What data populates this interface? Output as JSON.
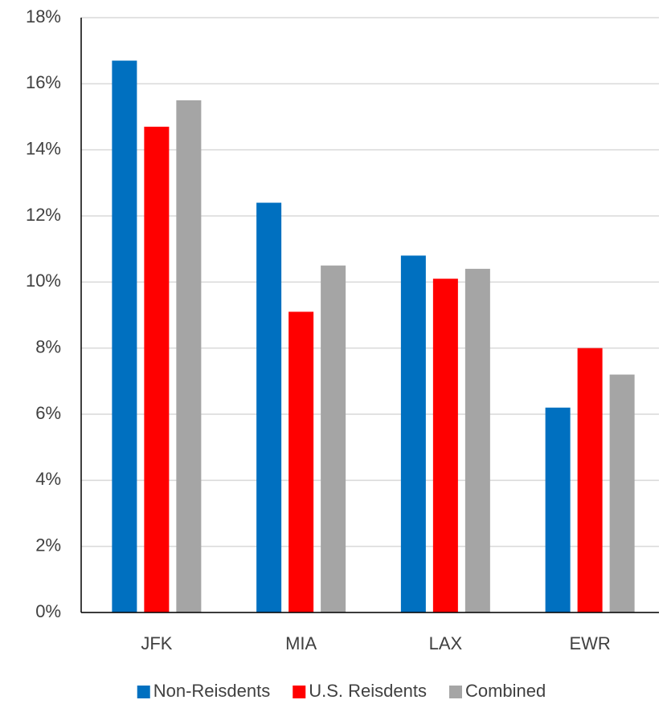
{
  "chart_data": {
    "type": "bar",
    "categories": [
      "JFK",
      "MIA",
      "LAX",
      "EWR"
    ],
    "series": [
      {
        "name": "Non-Reisdents",
        "color": "#0070c0",
        "values": [
          16.7,
          12.4,
          10.8,
          6.2
        ]
      },
      {
        "name": "U.S. Reisdents",
        "color": "#ff0000",
        "values": [
          14.7,
          9.1,
          10.1,
          8.0
        ]
      },
      {
        "name": "Combined",
        "color": "#a5a5a5",
        "values": [
          15.5,
          10.5,
          10.4,
          7.2
        ]
      }
    ],
    "ylim": [
      0,
      18
    ],
    "yticks": [
      {
        "value": 0,
        "label": "0%"
      },
      {
        "value": 2,
        "label": "2%"
      },
      {
        "value": 4,
        "label": "4%"
      },
      {
        "value": 6,
        "label": "6%"
      },
      {
        "value": 8,
        "label": "8%"
      },
      {
        "value": 10,
        "label": "10%"
      },
      {
        "value": 12,
        "label": "12%"
      },
      {
        "value": 14,
        "label": "14%"
      },
      {
        "value": 16,
        "label": "16%"
      },
      {
        "value": 18,
        "label": "18%"
      }
    ],
    "grid": true,
    "legend": "bottom"
  }
}
